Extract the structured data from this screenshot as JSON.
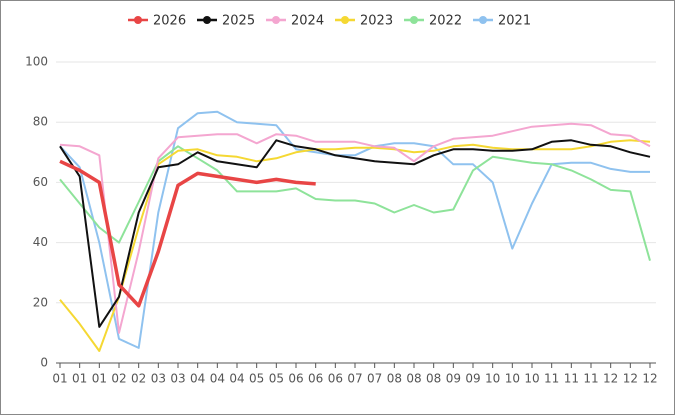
{
  "chart_data": {
    "type": "line",
    "categories": [
      "01",
      "01",
      "01",
      "02",
      "02",
      "03",
      "03",
      "04",
      "04",
      "04",
      "05",
      "05",
      "06",
      "06",
      "06",
      "07",
      "07",
      "08",
      "08",
      "08",
      "09",
      "09",
      "10",
      "10",
      "10",
      "11",
      "11",
      "11",
      "12",
      "12",
      "12"
    ],
    "ylim": [
      0,
      100
    ],
    "yticks": [
      0,
      20,
      40,
      60,
      80,
      100
    ],
    "grid": true,
    "legend": "top",
    "series": [
      {
        "name": "2026",
        "color": "#e84545",
        "values": [
          67,
          64,
          60,
          26,
          19,
          37,
          59,
          63,
          62,
          61,
          60,
          61,
          60,
          59.5,
          null,
          null,
          null,
          null,
          null,
          null,
          null,
          null,
          null,
          null,
          null,
          null,
          null,
          null,
          null,
          null,
          null
        ]
      },
      {
        "name": "2025",
        "color": "#111111",
        "values": [
          72,
          62,
          12,
          22,
          50,
          65,
          66,
          70,
          67,
          66,
          65,
          74,
          72,
          71,
          69,
          68,
          67,
          66.5,
          66,
          69,
          71,
          71,
          70.5,
          70.5,
          71,
          73.5,
          74,
          72.5,
          72,
          70,
          68.5
        ]
      },
      {
        "name": "2024",
        "color": "#f4a6d0",
        "values": [
          72.5,
          72,
          69,
          10,
          37,
          68,
          75,
          75.5,
          76,
          76,
          73,
          76,
          75.5,
          73.5,
          73.5,
          73.5,
          72,
          71.5,
          67,
          72,
          74.5,
          75,
          75.5,
          77,
          78.5,
          79,
          79.5,
          79,
          76,
          75.5,
          72
        ]
      },
      {
        "name": "2023",
        "color": "#f5d833",
        "values": [
          21,
          13,
          4,
          22,
          45,
          66,
          70.5,
          71,
          69,
          68.5,
          67,
          68,
          70,
          71,
          71,
          71.5,
          71.5,
          71,
          70,
          70.5,
          72,
          72.5,
          71.5,
          71,
          71,
          71,
          71,
          72,
          73.5,
          74,
          73.5
        ]
      },
      {
        "name": "2022",
        "color": "#8ee39a",
        "values": [
          61,
          53,
          45,
          40,
          53.5,
          67,
          72,
          68,
          64,
          57,
          57,
          57,
          58,
          54.5,
          54,
          54,
          53,
          50,
          52.5,
          50,
          51,
          64,
          68.5,
          67.5,
          66.5,
          66,
          64,
          61,
          57.5,
          57,
          34
        ]
      },
      {
        "name": "2021",
        "color": "#8fc2ef",
        "values": [
          72,
          65,
          40,
          8,
          5,
          50,
          78,
          83,
          83.5,
          80,
          79.5,
          79,
          71,
          70,
          69,
          69,
          72,
          73,
          73,
          72,
          66,
          66,
          60,
          38,
          53,
          66,
          66.5,
          66.5,
          64.5,
          63.5,
          63.5
        ]
      }
    ]
  }
}
